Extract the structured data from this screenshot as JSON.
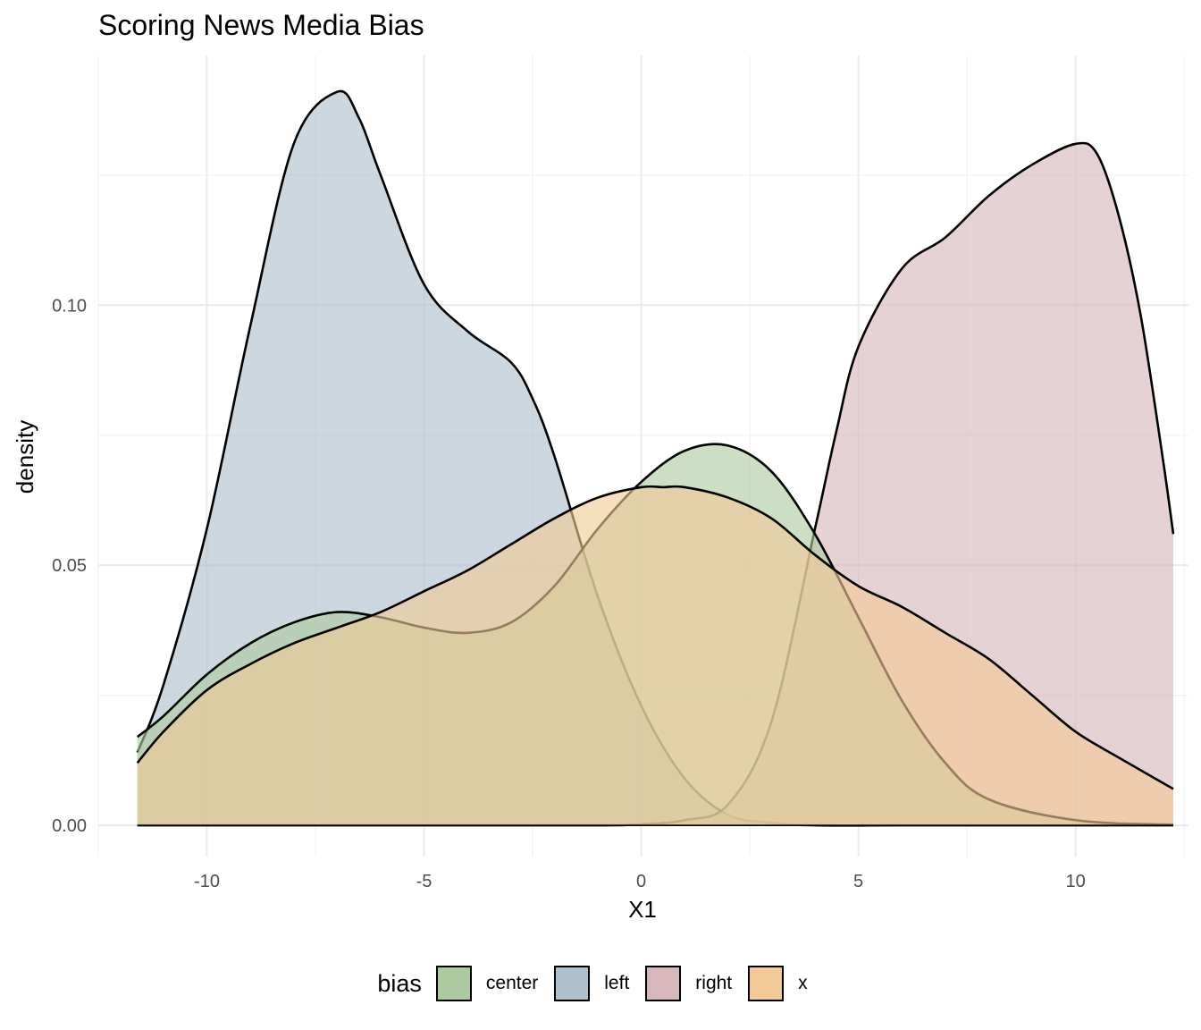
{
  "chart_data": {
    "type": "area",
    "title": "Scoring News Media Bias",
    "xlabel": "X1",
    "ylabel": "density",
    "xlim": [
      -12.5,
      12.6
    ],
    "ylim": [
      -0.006,
      0.148
    ],
    "x_ticks": [
      -10,
      -5,
      0,
      5,
      10
    ],
    "x_tick_labels": [
      "-10",
      "-5",
      "0",
      "5",
      "10"
    ],
    "y_ticks": [
      0.0,
      0.05,
      0.1
    ],
    "y_tick_labels": [
      "0.00",
      "0.05",
      "0.10"
    ],
    "grid": true,
    "legend": {
      "title": "bias",
      "position": "bottom"
    },
    "series": [
      {
        "name": "left",
        "color": "#afbfcc",
        "x": [
          -11.6,
          -11,
          -10,
          -9,
          -8,
          -7,
          -6.5,
          -6,
          -5,
          -4,
          -3,
          -2.5,
          -2,
          -1,
          0,
          1,
          2,
          3,
          4,
          6,
          8,
          10,
          12.25
        ],
        "y": [
          0.014,
          0.027,
          0.057,
          0.096,
          0.131,
          0.141,
          0.136,
          0.125,
          0.104,
          0.095,
          0.089,
          0.082,
          0.071,
          0.044,
          0.023,
          0.009,
          0.002,
          0.0005,
          0.0,
          0.0,
          0.0,
          0.0,
          0.0
        ]
      },
      {
        "name": "right",
        "color": "#d6b7bc",
        "x": [
          -11.6,
          -8,
          -4,
          -1,
          0,
          1,
          2,
          3,
          4,
          4.5,
          5,
          6,
          7,
          8,
          9,
          10,
          10.5,
          11,
          11.5,
          12,
          12.25
        ],
        "y": [
          0.0,
          0.0,
          0.0,
          0.0,
          0.0002,
          0.001,
          0.004,
          0.02,
          0.057,
          0.076,
          0.092,
          0.107,
          0.113,
          0.121,
          0.127,
          0.131,
          0.129,
          0.117,
          0.098,
          0.071,
          0.056
        ]
      },
      {
        "name": "center",
        "color": "#adc9a0",
        "x": [
          -11.6,
          -11,
          -10,
          -9,
          -8,
          -7,
          -6,
          -5,
          -4,
          -3,
          -2,
          -1,
          0,
          1,
          2,
          3,
          4,
          5,
          6,
          7,
          8,
          10,
          12.25
        ],
        "y": [
          0.017,
          0.021,
          0.029,
          0.035,
          0.039,
          0.041,
          0.04,
          0.038,
          0.037,
          0.039,
          0.046,
          0.057,
          0.066,
          0.072,
          0.073,
          0.068,
          0.056,
          0.04,
          0.024,
          0.012,
          0.005,
          0.001,
          0.0001
        ]
      },
      {
        "name": "x",
        "color": "#f2c998",
        "x": [
          -11.6,
          -11,
          -10,
          -9,
          -8,
          -7,
          -6,
          -5,
          -4,
          -3,
          -2,
          -1,
          0,
          0.5,
          1,
          2,
          3,
          4,
          5,
          6,
          7,
          8,
          9,
          10,
          11,
          12.25
        ],
        "y": [
          0.012,
          0.018,
          0.026,
          0.031,
          0.035,
          0.038,
          0.041,
          0.045,
          0.049,
          0.054,
          0.059,
          0.063,
          0.065,
          0.065,
          0.065,
          0.063,
          0.059,
          0.052,
          0.046,
          0.042,
          0.037,
          0.032,
          0.025,
          0.018,
          0.013,
          0.007
        ]
      }
    ],
    "legend_order": [
      "center",
      "left",
      "right",
      "x"
    ]
  }
}
